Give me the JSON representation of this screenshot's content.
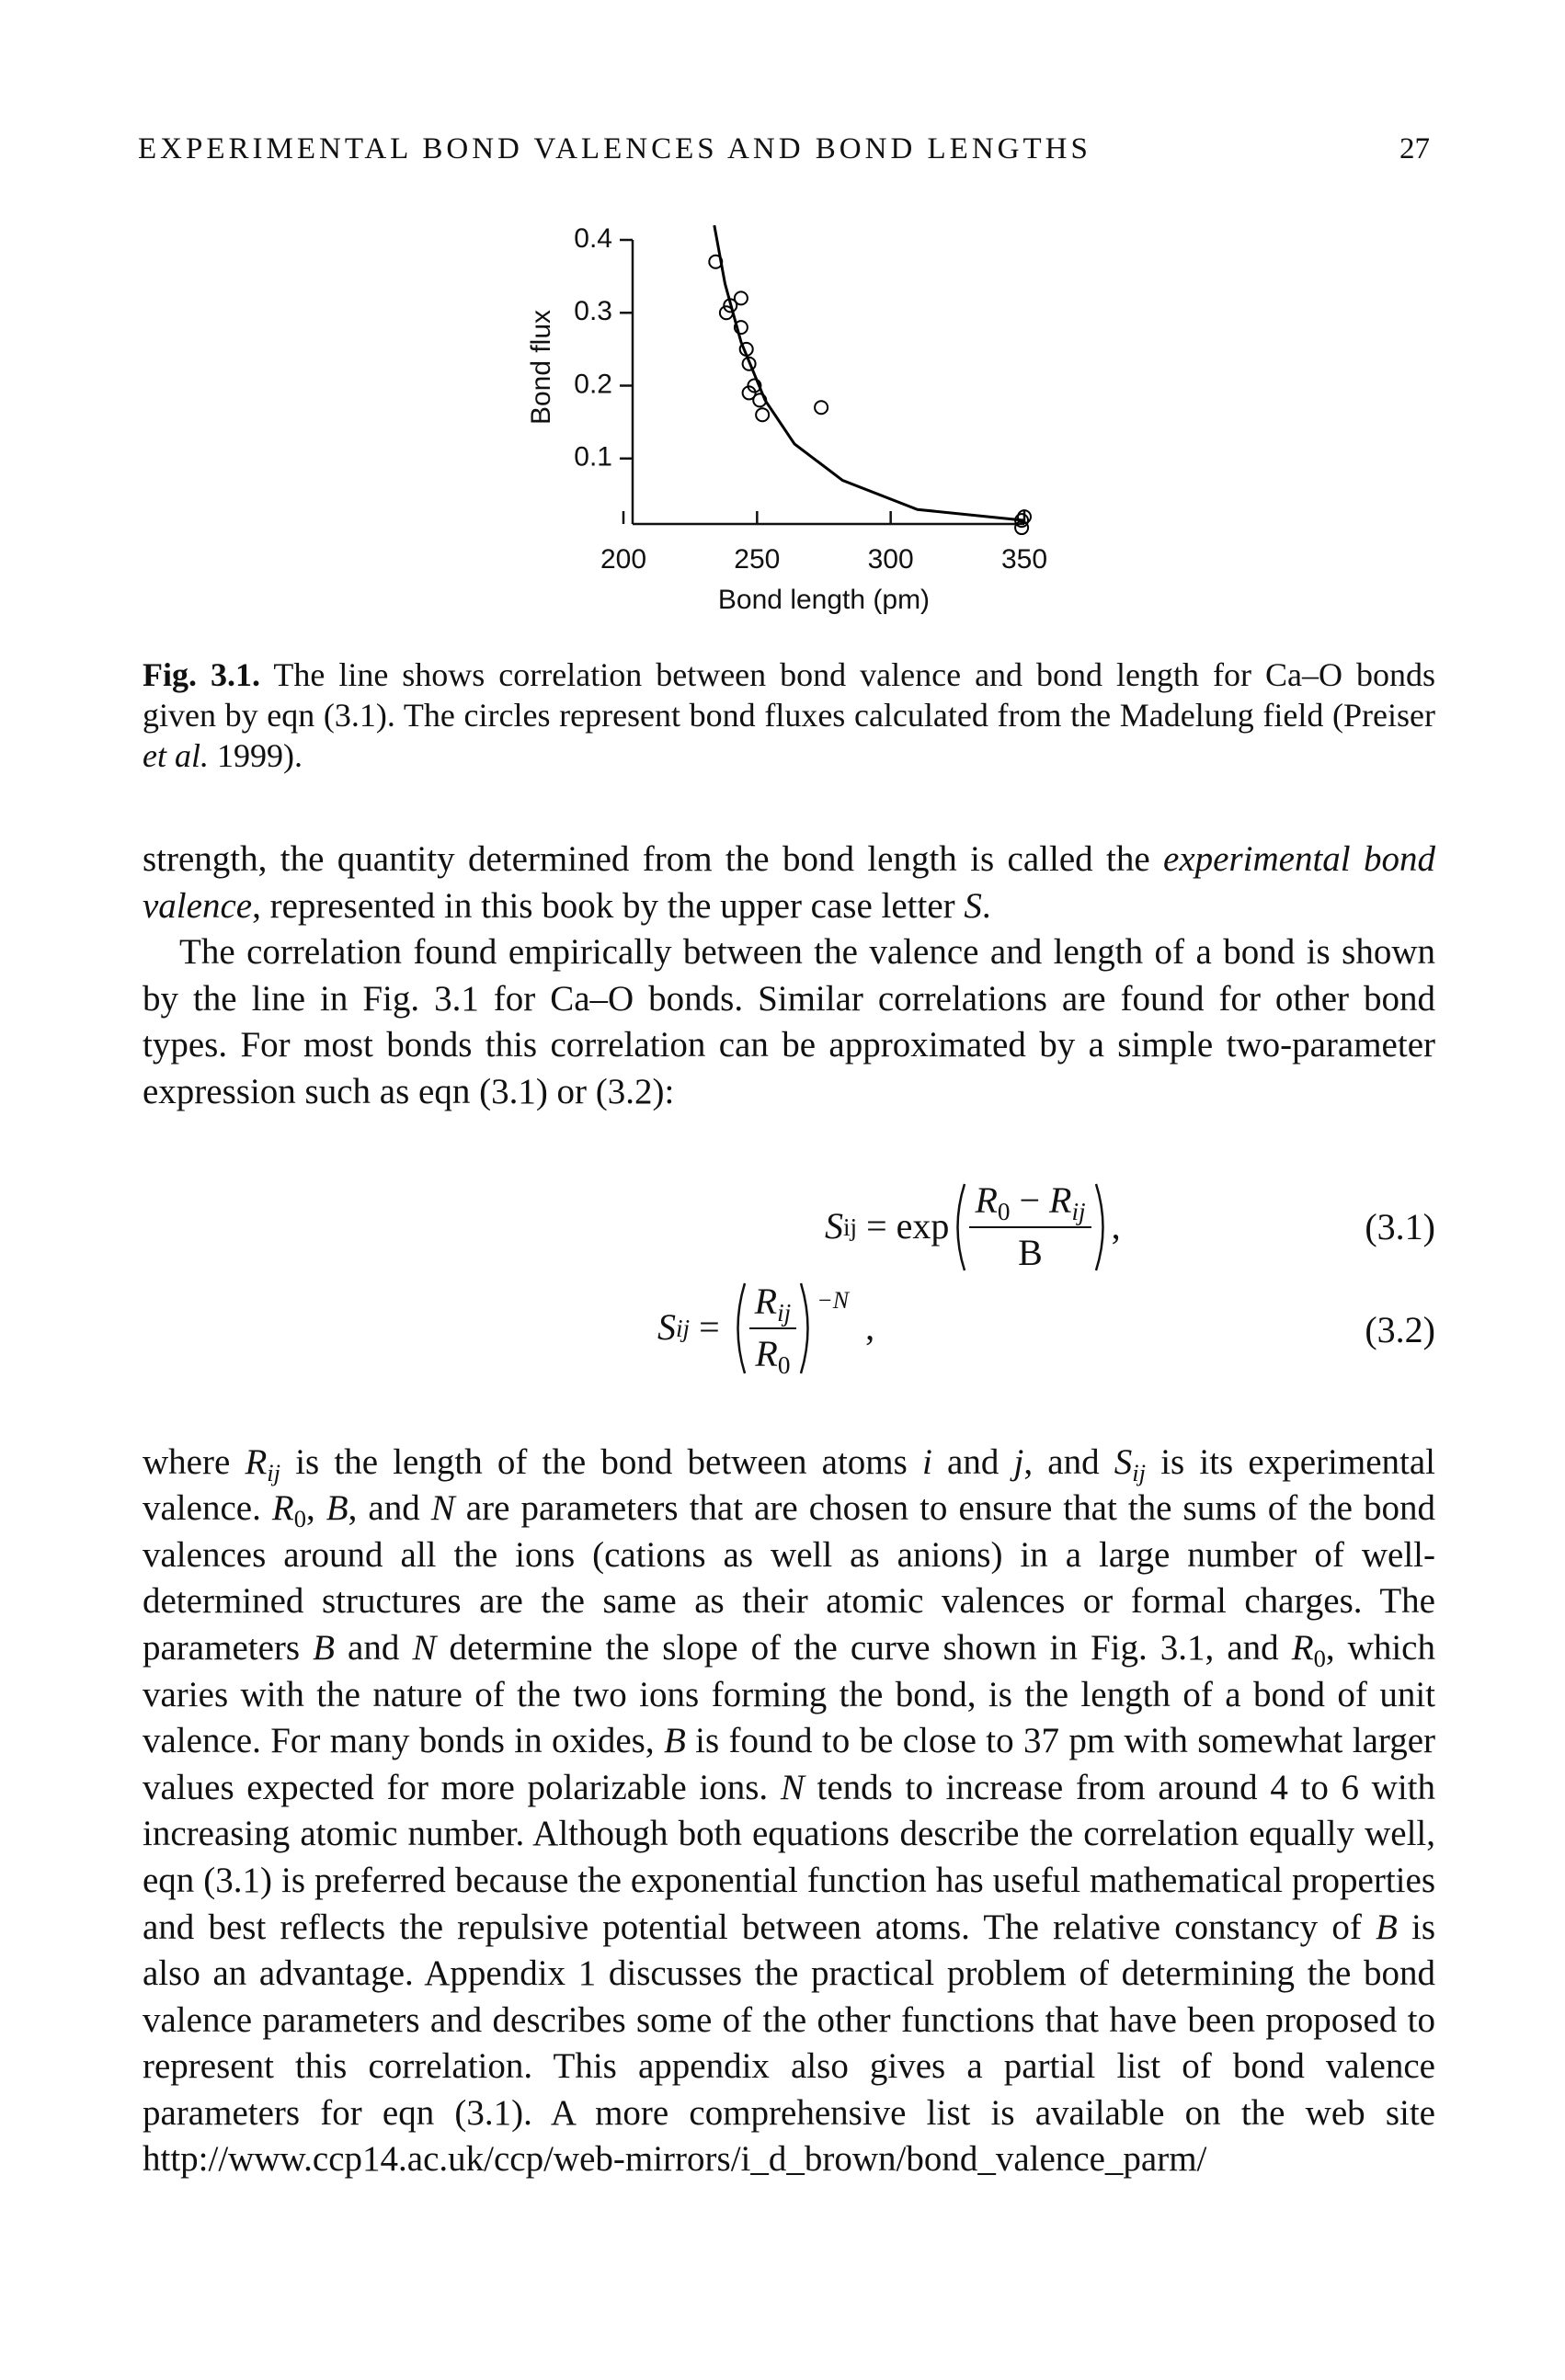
{
  "header": {
    "title": "EXPERIMENTAL BOND VALENCES AND BOND LENGTHS",
    "page": "27"
  },
  "figure": {
    "chart_data": {
      "type": "scatter",
      "xlabel": "Bond length (pm)",
      "ylabel": "Bond flux",
      "xlim": [
        200,
        350
      ],
      "ylim": [
        0,
        0.4
      ],
      "xticks": [
        200,
        250,
        300,
        350
      ],
      "yticks": [
        0.1,
        0.2,
        0.3,
        0.4
      ],
      "series": [
        {
          "style": "line",
          "color": "#000000",
          "x": [
            234,
            238,
            244,
            253,
            264,
            282,
            310,
            350
          ],
          "y": [
            0.42,
            0.34,
            0.26,
            0.18,
            0.12,
            0.07,
            0.03,
            0.015
          ]
        },
        {
          "style": "circle",
          "color": "#000000",
          "x": [
            234.5,
            238.5,
            240,
            244,
            244,
            246,
            247,
            249,
            247,
            251,
            252,
            274,
            349,
            350,
            349
          ],
          "y": [
            0.37,
            0.3,
            0.31,
            0.32,
            0.28,
            0.25,
            0.23,
            0.2,
            0.19,
            0.18,
            0.16,
            0.17,
            0.015,
            0.02,
            0.005
          ]
        }
      ]
    },
    "caption": [
      {
        "b": "Fig. 3.1."
      },
      " The line shows correlation between bond valence and bond length for Ca–O bonds given by eqn (3.1). The circles represent bond fluxes calculated from the Madelung field (Preiser ",
      {
        "i": "et al."
      },
      " 1999)."
    ]
  },
  "body": [
    [
      "strength, the quantity determined from the bond length is called the ",
      {
        "i": "experimental bond valence"
      },
      ", represented in this book by the upper case letter ",
      {
        "i": "S"
      },
      "."
    ],
    [
      "The correlation found empirically between the valence and length of a bond is shown by the line in Fig. 3.1 for Ca–O bonds. Similar correlations are found for other bond types. For most bonds this correlation can be approximated by a simple two-parameter expression such as eqn (3.1) or (3.2):"
    ],
    [
      "where ",
      {
        "i": "R"
      },
      {
        "sub": "ij"
      },
      " is the length of the bond between atoms ",
      {
        "i": "i"
      },
      " and ",
      {
        "i": "j"
      },
      ", and ",
      {
        "i": "S"
      },
      {
        "sub": "ij"
      },
      " is its experimental valence. ",
      {
        "i": "R"
      },
      {
        "sub": "0"
      },
      ", ",
      {
        "i": "B"
      },
      ", and ",
      {
        "i": "N"
      },
      " are parameters that are chosen to ensure that the sums of the bond valences around all the ions (cations as well as anions) in a large number of well-determined structures are the same as their atomic valences or formal charges. The parameters ",
      {
        "i": "B"
      },
      " and ",
      {
        "i": "N"
      },
      " determine the slope of the curve shown in Fig. 3.1, and ",
      {
        "i": "R"
      },
      {
        "sub": "0"
      },
      ", which varies with the nature of the two ions forming the bond, is the length of a bond of unit valence. For many bonds in oxides, ",
      {
        "i": "B"
      },
      " is found to be close to 37 pm with somewhat larger values expected for more polarizable ions. ",
      {
        "i": "N"
      },
      " tends to increase from around 4 to 6 with increasing atomic number. Although both equations describe the correlation equally well, eqn (3.1) is preferred because the exponential function has useful mathematical properties and best reflects the repulsive potential between atoms. The relative constancy of ",
      {
        "i": "B"
      },
      " is also an advantage. Appendix 1 discusses the practical problem of determining the bond valence parameters and describes some of the other functions that have been proposed to represent this correlation. This appendix also gives a partial list of bond valence parameters for eqn (3.1). A more comprehensive list is available on the web site http://www.ccp14.ac.uk/ccp/web-mirrors/i_d_brown/bond_valence_parm/"
    ]
  ],
  "equations": [
    {
      "lhs": "S",
      "lhs_sub": "ij",
      "eq": "=",
      "fn": "exp",
      "num_a": "R",
      "num_a_sub": "0",
      "minus": "−",
      "num_b": "R",
      "num_b_sub": "ij",
      "den": "B",
      "punct": ",",
      "number": "(3.1)"
    },
    {
      "lhs": "S",
      "lhs_sub": "ij",
      "eq": "=",
      "num": "R",
      "num_sub": "ij",
      "den": "R",
      "den_sub": "0",
      "exp": "−N",
      "punct": ",",
      "number": "(3.2)"
    }
  ]
}
